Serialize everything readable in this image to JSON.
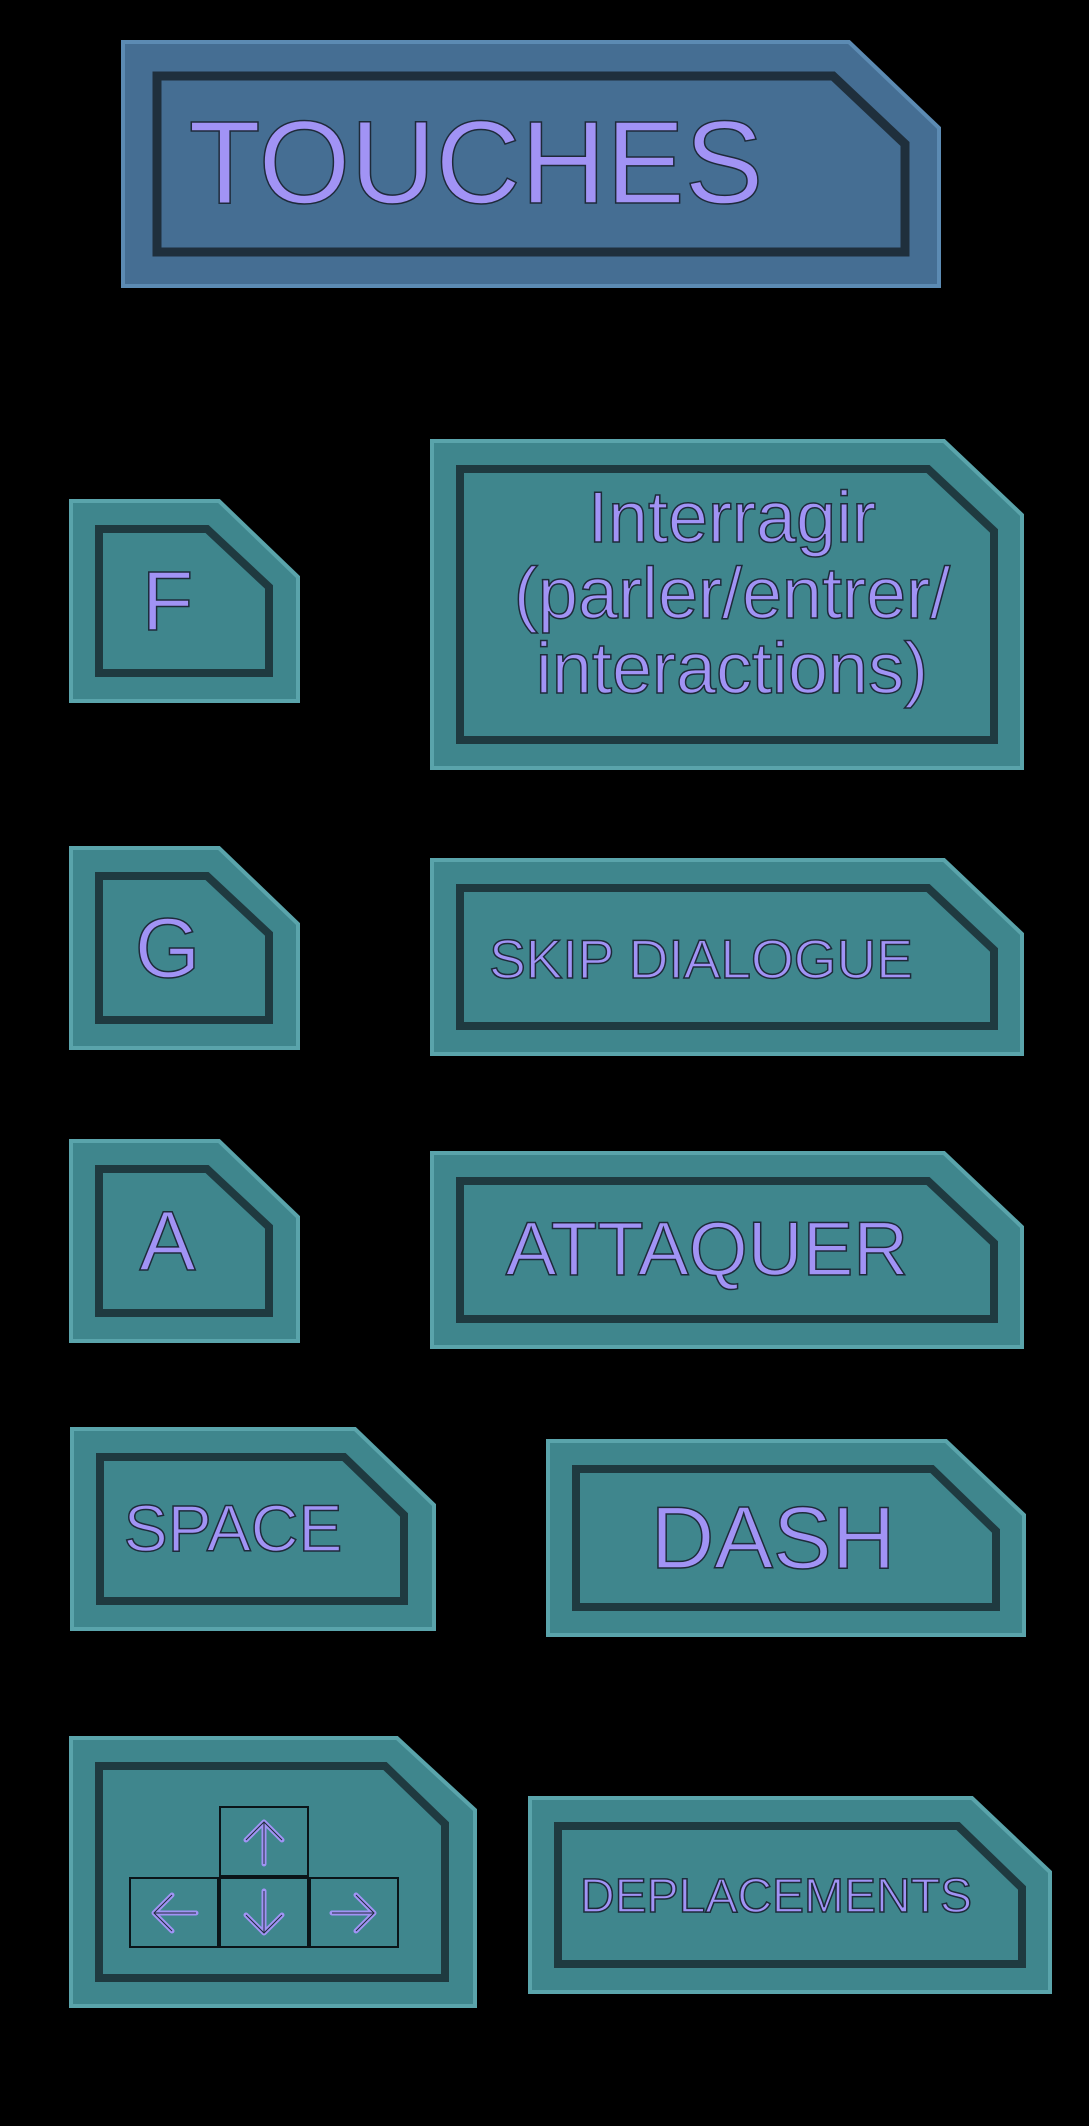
{
  "colors": {
    "background": "#000000",
    "title_panel": "#456e93",
    "title_panel_border": "#5c8bb3",
    "key_panel": "#3f868d",
    "key_panel_border": "#5aa4ab",
    "inner_frame": "#1f3a40",
    "label_text": "#a193f5"
  },
  "title": "TOUCHES",
  "bindings": [
    {
      "key": "F",
      "action": "Interragir\n(parler/entrer/\ninteractions)"
    },
    {
      "key": "G",
      "action": "SKIP DIALOGUE"
    },
    {
      "key": "A",
      "action": "ATTAQUER"
    },
    {
      "key": "SPACE",
      "action": "DASH"
    },
    {
      "key_icon": "arrow-keys-icon",
      "action": "DEPLACEMENTS"
    }
  ]
}
